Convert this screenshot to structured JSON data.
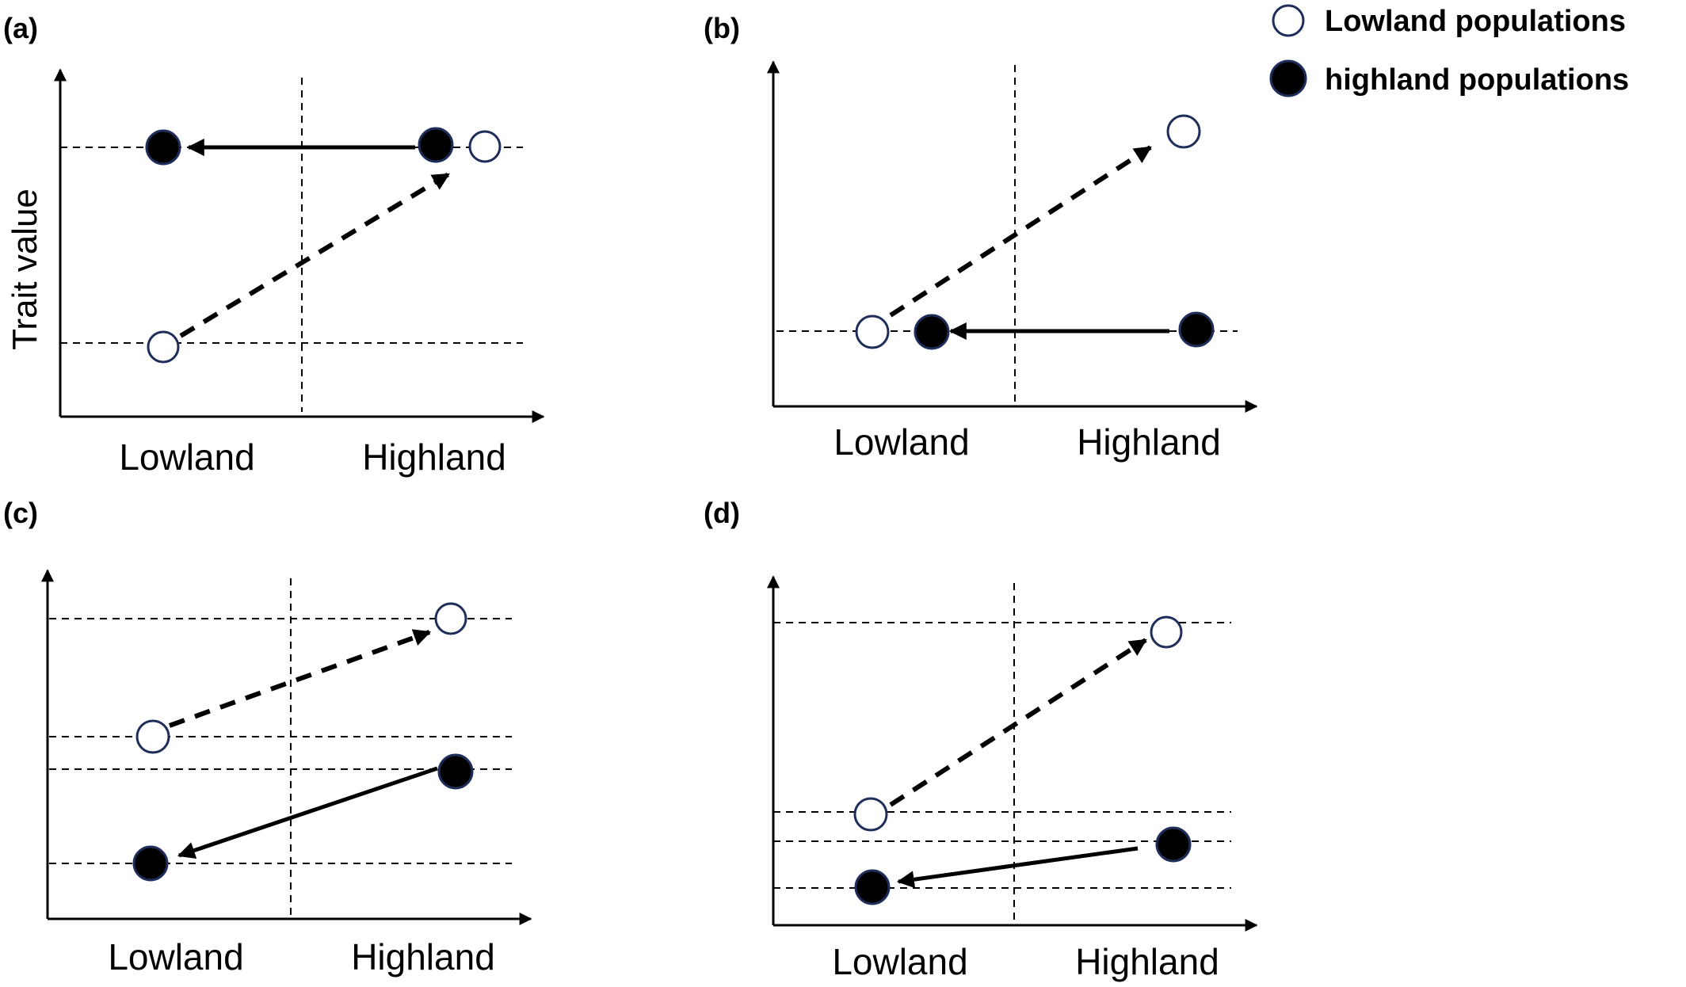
{
  "legend": {
    "lowland": "Lowland populations",
    "highland": "highland populations"
  },
  "y_axis_title": "Trait value",
  "categories": [
    "Lowland",
    "Highland"
  ],
  "panels": [
    {
      "label": "(a)",
      "lowland_pop": {
        "lowland": 1,
        "highland": 3
      },
      "highland_pop": {
        "lowland": 3,
        "highland": 3
      }
    },
    {
      "label": "(b)",
      "lowland_pop": {
        "lowland": 1,
        "highland": 3
      },
      "highland_pop": {
        "lowland": 1,
        "highland": 1
      }
    },
    {
      "label": "(c)",
      "lowland_pop": {
        "lowland": 2.2,
        "highland": 3
      },
      "highland_pop": {
        "lowland": 1,
        "highland": 2
      }
    },
    {
      "label": "(d)",
      "lowland_pop": {
        "lowland": 1.6,
        "highland": 3
      },
      "highland_pop": {
        "lowland": 1,
        "highland": 1.3
      }
    }
  ],
  "colors": {
    "line": "#000000",
    "open_marker_stroke": "#1f2d5a",
    "filled_marker": "#000000"
  }
}
